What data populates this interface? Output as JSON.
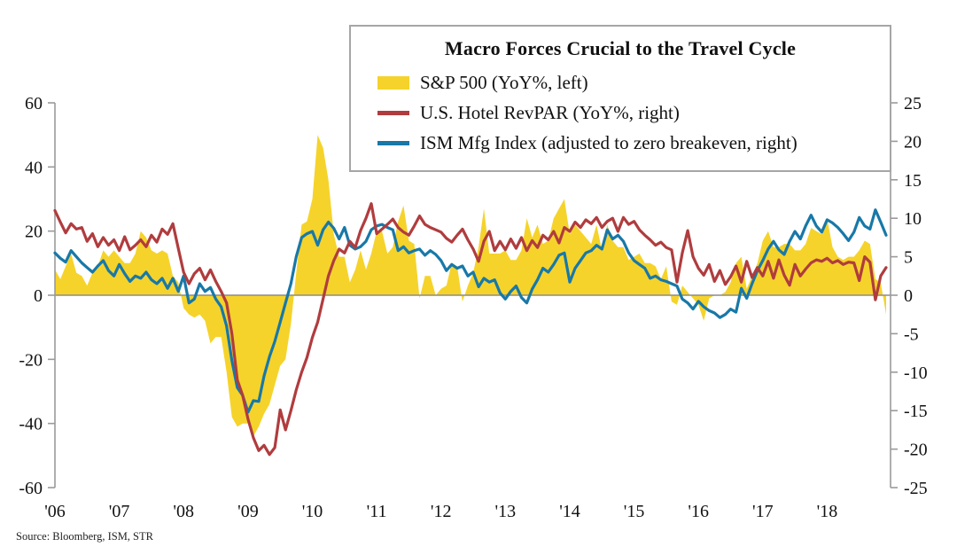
{
  "source": "Source: Bloomberg, ISM, STR",
  "chart_data": {
    "type": "area",
    "title": "Macro Forces Crucial to the Travel Cycle",
    "x_unit": "monthly",
    "x_start": "2006-01",
    "x_end": "2018-12",
    "x_tick_labels": [
      "'06",
      "'07",
      "'08",
      "'09",
      "'10",
      "'11",
      "'12",
      "'13",
      "'14",
      "'15",
      "'16",
      "'17",
      "'18"
    ],
    "left_axis": {
      "min": -60,
      "max": 60,
      "ticks": [
        60,
        40,
        20,
        0,
        -20,
        -40,
        -60
      ]
    },
    "right_axis": {
      "min": -25,
      "max": 25,
      "ticks": [
        25,
        20,
        15,
        10,
        5,
        0,
        -5,
        -10,
        -15,
        -20,
        -25
      ]
    },
    "grid": "zero-line-only",
    "legend_position": "top-center-box",
    "axis_color": "#9a9a9a",
    "zero_line_color": "#8c8c8c",
    "series": [
      {
        "name": "S&P 500 (YoY%, left)",
        "type": "area",
        "axis": "left",
        "color": "#F5D32B",
        "values": [
          8,
          5,
          9,
          13,
          7,
          6,
          3,
          7,
          9,
          14,
          12,
          14,
          12,
          10,
          10,
          13,
          20,
          18,
          14,
          13,
          14,
          13,
          6,
          4,
          -4,
          -6,
          -7,
          -6,
          -8,
          -15,
          -13,
          -13,
          -24,
          -38,
          -41,
          -40,
          -40,
          -44,
          -41,
          -37,
          -34,
          -28,
          -22,
          -20,
          -9,
          7,
          22,
          23,
          30,
          50,
          46,
          36,
          19,
          12,
          12,
          4,
          8,
          14,
          8,
          13,
          20,
          20,
          13,
          15,
          23,
          28,
          17,
          16,
          -1,
          6,
          6,
          0,
          2,
          3,
          10,
          9,
          -2,
          3,
          7,
          15,
          27,
          13,
          13,
          13,
          14,
          11,
          11,
          14,
          24,
          18,
          22,
          16,
          17,
          24,
          27,
          30,
          19,
          22,
          20,
          18,
          16,
          22,
          14,
          22,
          17,
          15,
          15,
          11,
          12,
          13,
          10,
          10,
          9,
          5,
          9,
          -2,
          -3,
          3,
          1,
          -1,
          -3,
          -8,
          -1,
          0,
          0,
          1,
          4,
          10,
          12,
          2,
          6,
          10,
          17,
          20,
          15,
          15,
          16,
          16,
          14,
          14,
          16,
          21,
          20,
          19,
          24,
          15,
          12,
          11,
          12,
          12,
          14,
          17,
          16,
          5,
          4,
          -6
        ]
      },
      {
        "name": "U.S. Hotel RevPAR (YoY%, right)",
        "type": "line",
        "axis": "right",
        "color": "#B03C3E",
        "values": [
          11,
          9.5,
          8.1,
          9.3,
          8.6,
          8.8,
          7,
          8,
          6.3,
          7.5,
          6.5,
          7.2,
          5.8,
          7.6,
          5.9,
          6.5,
          7.2,
          6.3,
          7.8,
          6.9,
          8.6,
          7.9,
          9.3,
          6.1,
          3,
          1.5,
          2.8,
          3.5,
          2,
          3.3,
          1.8,
          0.5,
          -1,
          -5,
          -11,
          -13,
          -16.1,
          -18.5,
          -20.2,
          -19.5,
          -20.7,
          -19.8,
          -14.9,
          -17.5,
          -15,
          -12.3,
          -10,
          -8.1,
          -5.5,
          -3.5,
          -0.5,
          2.5,
          4.5,
          6,
          5.5,
          7,
          6.2,
          8.4,
          10,
          11.9,
          8,
          8.6,
          9.2,
          9.9,
          8.8,
          8.2,
          7.8,
          9,
          10.3,
          9.2,
          8.8,
          8.5,
          8.2,
          7.4,
          6.9,
          7.8,
          8.6,
          7.2,
          6,
          4.4,
          7,
          8.3,
          5.8,
          7,
          5.9,
          7.3,
          6.1,
          7.5,
          5.8,
          7.1,
          6.2,
          7.8,
          7.2,
          8.3,
          6.8,
          8.8,
          8.3,
          9.5,
          8.8,
          9.8,
          9.3,
          10.1,
          8.8,
          9.6,
          10,
          8.3,
          10.1,
          9.2,
          9.6,
          8.5,
          7.8,
          7.2,
          6.5,
          6.9,
          6.2,
          5.9,
          1.7,
          5.5,
          8.4,
          5,
          3.5,
          2.6,
          4,
          1.8,
          3.2,
          1.4,
          2.4,
          3.8,
          1.7,
          4.4,
          2.3,
          3.6,
          2.5,
          4.4,
          2.2,
          4.6,
          2.6,
          1.3,
          4,
          2.5,
          3.4,
          4.2,
          4.6,
          4.4,
          4.8,
          4.2,
          4.5,
          4,
          4.3,
          4.2,
          1.9,
          5,
          4.3,
          -0.6,
          2.5,
          3.6
        ]
      },
      {
        "name": "ISM Mfg Index (adjusted to zero breakeven, right)",
        "type": "line",
        "axis": "right",
        "color": "#1878A8",
        "values": [
          5.5,
          4.8,
          4.3,
          5.8,
          5,
          4.2,
          3.6,
          3,
          3.8,
          4.5,
          3.2,
          2.5,
          4,
          2.8,
          1.8,
          2.5,
          2.2,
          3,
          2,
          1.5,
          2.2,
          0.9,
          2.2,
          0.5,
          2.5,
          -1,
          -0.5,
          1.5,
          0.5,
          1,
          -0.5,
          -1.5,
          -4,
          -8.5,
          -12,
          -13,
          -15.2,
          -13.7,
          -13.8,
          -10.5,
          -8,
          -6,
          -3.5,
          -1,
          1.5,
          5,
          7.5,
          8,
          8.3,
          6.5,
          8.5,
          9.5,
          8.7,
          7.3,
          8.8,
          6.5,
          6,
          6.3,
          7,
          8.5,
          9,
          9.2,
          8.8,
          8.5,
          5.8,
          6.3,
          5.5,
          5.8,
          6,
          5.2,
          5.8,
          5.3,
          4.5,
          3.2,
          4,
          3.5,
          3.8,
          2.5,
          3,
          1.1,
          2.2,
          1.7,
          2,
          0.3,
          -0.5,
          0.5,
          1.2,
          -0.3,
          -1,
          0.8,
          2,
          3.5,
          3,
          4,
          5.2,
          5.5,
          1.7,
          3.5,
          4.5,
          5.5,
          5.8,
          6.5,
          6,
          8.5,
          7.3,
          7.8,
          7,
          5.5,
          4.5,
          4,
          3.5,
          2.2,
          2.5,
          2,
          1.8,
          1.5,
          1.2,
          -0.5,
          -1,
          -1.8,
          -0.8,
          -1.5,
          -2,
          -2.3,
          -2.9,
          -2.5,
          -1.8,
          -2.2,
          0.9,
          -0.4,
          1.5,
          3.2,
          4.5,
          6,
          7,
          5.9,
          5.3,
          7,
          8.3,
          7.3,
          9,
          10.4,
          9,
          8.2,
          9.8,
          9.4,
          8.8,
          8,
          7.1,
          8.2,
          10.1,
          9,
          8.6,
          11.1,
          9.5,
          7.8
        ]
      }
    ]
  }
}
